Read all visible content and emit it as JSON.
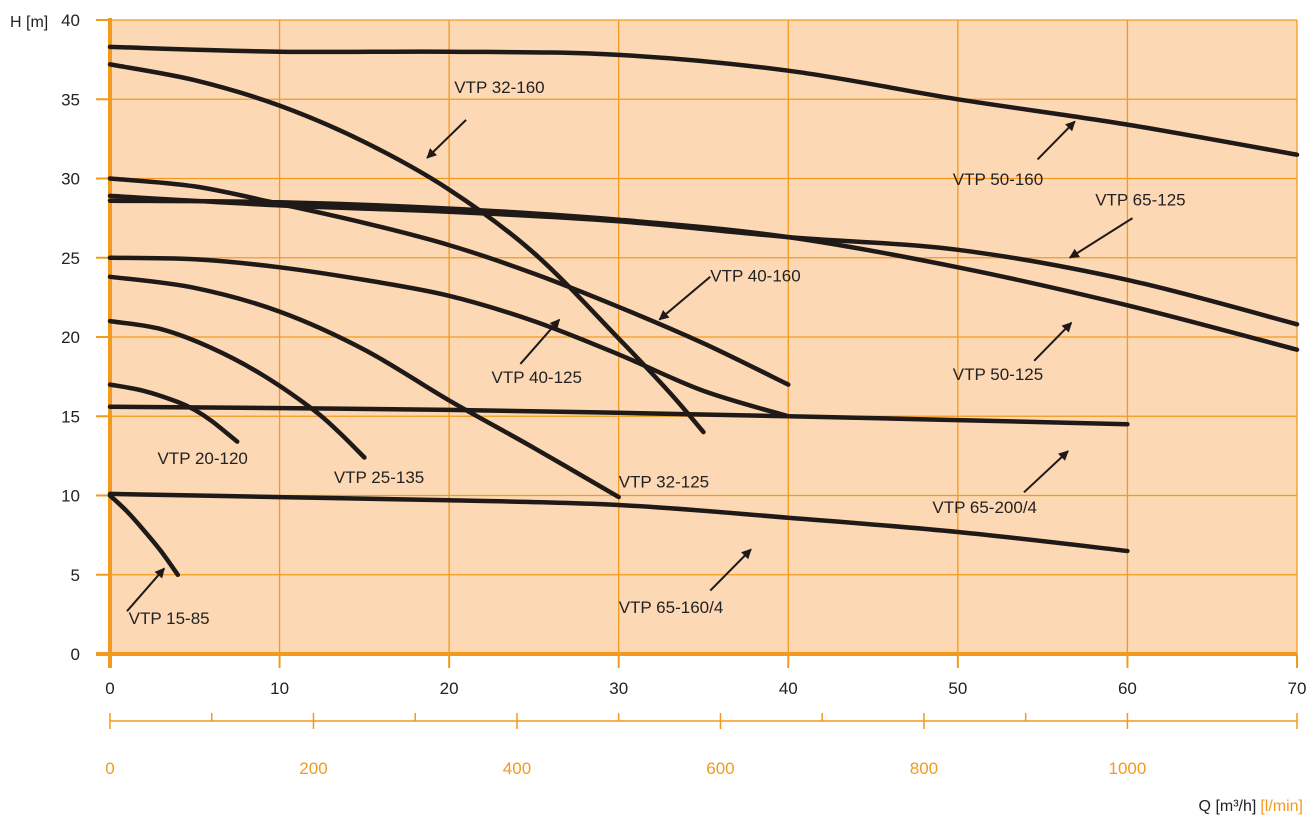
{
  "colors": {
    "plot_bg": "#fcd8b4",
    "grid": "#f39a1e",
    "axis": "#f39a1e",
    "curve": "#1f1a17",
    "secondary_tick_text": "#f39a1e"
  },
  "chart_data": {
    "type": "line",
    "ylabel": "H [m]",
    "xlabel_main": "Q [m³/h]",
    "xlabel_secondary": "[l/min]",
    "xlim": [
      0,
      70
    ],
    "ylim": [
      0,
      40
    ],
    "grid": true,
    "x_ticks": [
      "0",
      "10",
      "20",
      "30",
      "40",
      "50",
      "60",
      "70"
    ],
    "y_ticks": [
      "0",
      "5",
      "10",
      "15",
      "20",
      "25",
      "30",
      "35",
      "40"
    ],
    "secondary_ticks": [
      "0",
      "200",
      "400",
      "600",
      "800",
      "1000"
    ],
    "series": [
      {
        "name": "VTP 15-85",
        "points": [
          [
            0,
            10
          ],
          [
            1,
            9
          ],
          [
            2,
            7.8
          ],
          [
            3,
            6.5
          ],
          [
            4,
            5
          ]
        ]
      },
      {
        "name": "VTP 20-120",
        "points": [
          [
            0,
            17
          ],
          [
            2,
            16.6
          ],
          [
            4,
            15.9
          ],
          [
            5,
            15.4
          ],
          [
            6,
            14.7
          ],
          [
            7.5,
            13.4
          ]
        ]
      },
      {
        "name": "VTP 25-135",
        "points": [
          [
            0,
            21
          ],
          [
            3,
            20.5
          ],
          [
            6,
            19.3
          ],
          [
            9,
            17.6
          ],
          [
            12,
            15.4
          ],
          [
            13.5,
            14
          ],
          [
            15,
            12.4
          ]
        ]
      },
      {
        "name": "VTP 32-125",
        "points": [
          [
            0,
            23.8
          ],
          [
            5,
            23.1
          ],
          [
            10,
            21.6
          ],
          [
            15,
            19.2
          ],
          [
            20,
            16
          ],
          [
            25,
            13
          ],
          [
            30,
            9.9
          ]
        ]
      },
      {
        "name": "VTP 32-160",
        "points": [
          [
            0,
            37.2
          ],
          [
            5,
            36.2
          ],
          [
            10,
            34.6
          ],
          [
            15,
            32.3
          ],
          [
            20,
            29.3
          ],
          [
            25,
            25.3
          ],
          [
            30,
            19.9
          ],
          [
            33,
            16.5
          ],
          [
            35,
            14
          ]
        ]
      },
      {
        "name": "VTP 40-125",
        "points": [
          [
            0,
            25
          ],
          [
            5,
            24.9
          ],
          [
            10,
            24.4
          ],
          [
            15,
            23.6
          ],
          [
            20,
            22.6
          ],
          [
            25,
            21
          ],
          [
            30,
            18.9
          ],
          [
            35,
            16.6
          ],
          [
            40,
            15
          ]
        ]
      },
      {
        "name": "VTP 40-160",
        "points": [
          [
            0,
            30
          ],
          [
            5,
            29.5
          ],
          [
            10,
            28.4
          ],
          [
            15,
            27.2
          ],
          [
            20,
            25.8
          ],
          [
            25,
            24
          ],
          [
            30,
            21.9
          ],
          [
            35,
            19.6
          ],
          [
            40,
            17
          ]
        ]
      },
      {
        "name": "VTP 50-125",
        "points": [
          [
            0,
            28.6
          ],
          [
            10,
            28.5
          ],
          [
            20,
            28.1
          ],
          [
            30,
            27.4
          ],
          [
            40,
            26.3
          ],
          [
            50,
            24.4
          ],
          [
            60,
            22
          ],
          [
            70,
            19.2
          ]
        ]
      },
      {
        "name": "VTP 65-125",
        "points": [
          [
            0,
            28.9
          ],
          [
            10,
            28.3
          ],
          [
            20,
            27.9
          ],
          [
            30,
            27.3
          ],
          [
            40,
            26.3
          ],
          [
            50,
            25.5
          ],
          [
            60,
            23.6
          ],
          [
            70,
            20.8
          ]
        ]
      },
      {
        "name": "VTP 50-160",
        "points": [
          [
            0,
            38.3
          ],
          [
            10,
            38
          ],
          [
            20,
            38
          ],
          [
            30,
            37.8
          ],
          [
            40,
            36.8
          ],
          [
            50,
            35
          ],
          [
            60,
            33.4
          ],
          [
            70,
            31.5
          ]
        ]
      },
      {
        "name": "VTP 65-200/4",
        "points": [
          [
            0,
            15.6
          ],
          [
            20,
            15.4
          ],
          [
            40,
            15
          ],
          [
            60,
            14.5
          ]
        ]
      },
      {
        "name": "VTP 65-160/4",
        "points": [
          [
            0,
            10.1
          ],
          [
            10,
            9.9
          ],
          [
            20,
            9.7
          ],
          [
            30,
            9.4
          ],
          [
            40,
            8.6
          ],
          [
            50,
            7.7
          ],
          [
            60,
            6.5
          ]
        ]
      }
    ],
    "annotations": [
      {
        "text": "VTP 15-85",
        "text_at": [
          1.1,
          1.9
        ],
        "arrow_from": [
          1,
          2.7
        ],
        "arrow_to": [
          3.2,
          5.4
        ]
      },
      {
        "text": "VTP 20-120",
        "text_at": [
          2.8,
          12
        ]
      },
      {
        "text": "VTP 25-135",
        "text_at": [
          13.2,
          10.8
        ]
      },
      {
        "text": "VTP 32-125",
        "text_at": [
          30,
          10.5
        ]
      },
      {
        "text": "VTP 32-160",
        "text_at": [
          20.3,
          35.4
        ],
        "arrow_from": [
          21,
          33.7
        ],
        "arrow_to": [
          18.7,
          31.3
        ]
      },
      {
        "text": "VTP 40-125",
        "text_at": [
          22.5,
          17.1
        ],
        "arrow_from": [
          24.2,
          18.3
        ],
        "arrow_to": [
          26.5,
          21.1
        ]
      },
      {
        "text": "VTP 40-160",
        "text_at": [
          35.4,
          23.5
        ],
        "arrow_from": [
          35.4,
          23.8
        ],
        "arrow_to": [
          32.4,
          21.1
        ]
      },
      {
        "text": "VTP 50-125",
        "text_at": [
          49.7,
          17.3
        ],
        "arrow_from": [
          54.5,
          18.5
        ],
        "arrow_to": [
          56.7,
          20.9
        ]
      },
      {
        "text": "VTP 65-125",
        "text_at": [
          58.1,
          28.3
        ],
        "arrow_from": [
          60.3,
          27.5
        ],
        "arrow_to": [
          56.6,
          25
        ]
      },
      {
        "text": "VTP 50-160",
        "text_at": [
          49.7,
          29.6
        ],
        "arrow_from": [
          54.7,
          31.2
        ],
        "arrow_to": [
          56.9,
          33.6
        ]
      },
      {
        "text": "VTP 65-200/4",
        "text_at": [
          48.5,
          8.9
        ],
        "arrow_from": [
          53.9,
          10.2
        ],
        "arrow_to": [
          56.5,
          12.8
        ]
      },
      {
        "text": "VTP 65-160/4",
        "text_at": [
          30,
          2.6
        ],
        "arrow_from": [
          35.4,
          4
        ],
        "arrow_to": [
          37.8,
          6.6
        ]
      }
    ]
  }
}
